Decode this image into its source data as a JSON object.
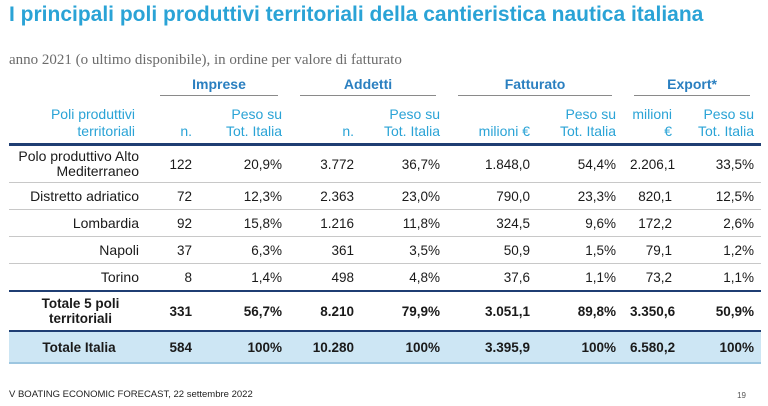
{
  "title": "I principali poli produttivi territoriali della cantieristica nautica italiana",
  "subtitle": "anno 2021 (o ultimo disponibile), in ordine per valore di fatturato",
  "groups": [
    "Imprese",
    "Addetti",
    "Fatturato",
    "Export*"
  ],
  "subheaders": {
    "label": "Poli produttivi territoriali",
    "imprese_n": "n.",
    "imprese_peso": "Peso su Tot. Italia",
    "addetti_n": "n.",
    "addetti_peso": "Peso su Tot. Italia",
    "fatturato_val": "milioni €",
    "fatturato_peso": "Peso su Tot. Italia",
    "export_val": "milioni €",
    "export_peso": "Peso su Tot. Italia"
  },
  "rows": [
    {
      "name": "Polo produttivo Alto Mediterraneo",
      "imprese_n": "122",
      "imprese_peso": "20,9%",
      "addetti_n": "3.772",
      "addetti_peso": "36,7%",
      "fatturato": "1.848,0",
      "fatturato_peso": "54,4%",
      "export": "2.206,1",
      "export_peso": "33,5%"
    },
    {
      "name": "Distretto adriatico",
      "imprese_n": "72",
      "imprese_peso": "12,3%",
      "addetti_n": "2.363",
      "addetti_peso": "23,0%",
      "fatturato": "790,0",
      "fatturato_peso": "23,3%",
      "export": "820,1",
      "export_peso": "12,5%"
    },
    {
      "name": "Lombardia",
      "imprese_n": "92",
      "imprese_peso": "15,8%",
      "addetti_n": "1.216",
      "addetti_peso": "11,8%",
      "fatturato": "324,5",
      "fatturato_peso": "9,6%",
      "export": "172,2",
      "export_peso": "2,6%"
    },
    {
      "name": "Napoli",
      "imprese_n": "37",
      "imprese_peso": "6,3%",
      "addetti_n": "361",
      "addetti_peso": "3,5%",
      "fatturato": "50,9",
      "fatturato_peso": "1,5%",
      "export": "79,1",
      "export_peso": "1,2%"
    },
    {
      "name": "Torino",
      "imprese_n": "8",
      "imprese_peso": "1,4%",
      "addetti_n": "498",
      "addetti_peso": "4,8%",
      "fatturato": "37,6",
      "fatturato_peso": "1,1%",
      "export": "73,2",
      "export_peso": "1,1%"
    }
  ],
  "total5": {
    "name": "Totale 5 poli territoriali",
    "imprese_n": "331",
    "imprese_peso": "56,7%",
    "addetti_n": "8.210",
    "addetti_peso": "79,9%",
    "fatturato": "3.051,1",
    "fatturato_peso": "89,8%",
    "export": "3.350,6",
    "export_peso": "50,9%"
  },
  "totalItalia": {
    "name": "Totale Italia",
    "imprese_n": "584",
    "imprese_peso": "100%",
    "addetti_n": "10.280",
    "addetti_peso": "100%",
    "fatturato": "3.395,9",
    "fatturato_peso": "100%",
    "export": "6.580,2",
    "export_peso": "100%"
  },
  "footer": "V BOATING ECONOMIC FORECAST, 22 settembre 2022",
  "page_number": "19",
  "colors": {
    "title": "#2aa3d6",
    "group_header": "#2a7fc0",
    "rule": "#1f3e73",
    "total_bg": "#cde6f4"
  }
}
